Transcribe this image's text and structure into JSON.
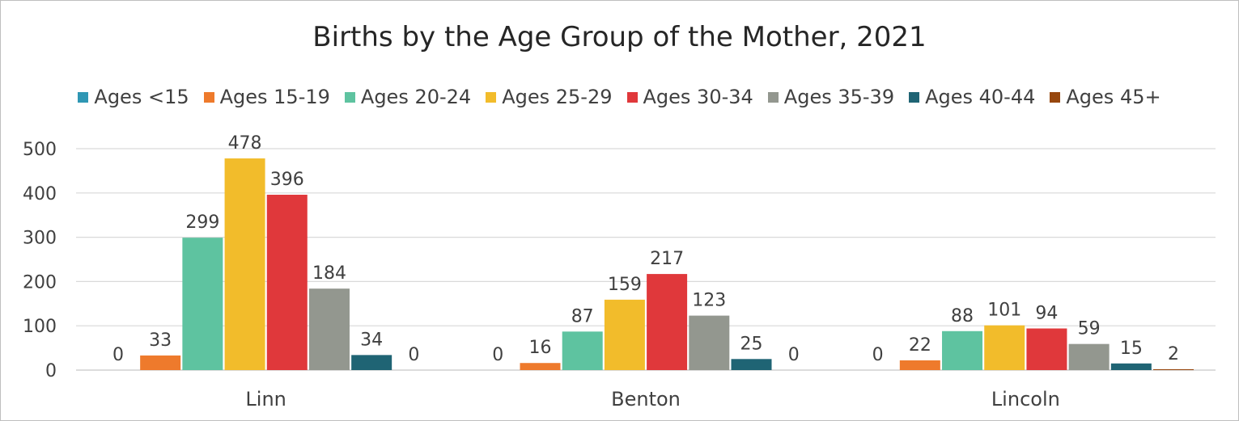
{
  "chart_data": {
    "type": "bar",
    "title": "Births by the Age Group of the Mother, 2021",
    "xlabel": "",
    "ylabel": "",
    "categories": [
      "Linn",
      "Benton",
      "Lincoln"
    ],
    "ylim": [
      0,
      500
    ],
    "yticks": [
      0,
      100,
      200,
      300,
      400,
      500
    ],
    "grid": true,
    "legend_position": "top",
    "series": [
      {
        "name": "Ages <15",
        "color": "#2f97b4",
        "values": [
          0,
          0,
          0
        ]
      },
      {
        "name": "Ages 15-19",
        "color": "#ee7a2c",
        "values": [
          33,
          16,
          22
        ]
      },
      {
        "name": "Ages 20-24",
        "color": "#5ec3a0",
        "values": [
          299,
          87,
          88
        ]
      },
      {
        "name": "Ages 25-29",
        "color": "#f2bc2b",
        "values": [
          478,
          159,
          101
        ]
      },
      {
        "name": "Ages 30-34",
        "color": "#e0383b",
        "values": [
          396,
          217,
          94
        ]
      },
      {
        "name": "Ages 35-39",
        "color": "#93978f",
        "values": [
          184,
          123,
          59
        ]
      },
      {
        "name": "Ages 40-44",
        "color": "#1f6474",
        "values": [
          34,
          25,
          15
        ]
      },
      {
        "name": "Ages 45+",
        "color": "#97470e",
        "values": [
          0,
          0,
          2
        ]
      }
    ]
  }
}
